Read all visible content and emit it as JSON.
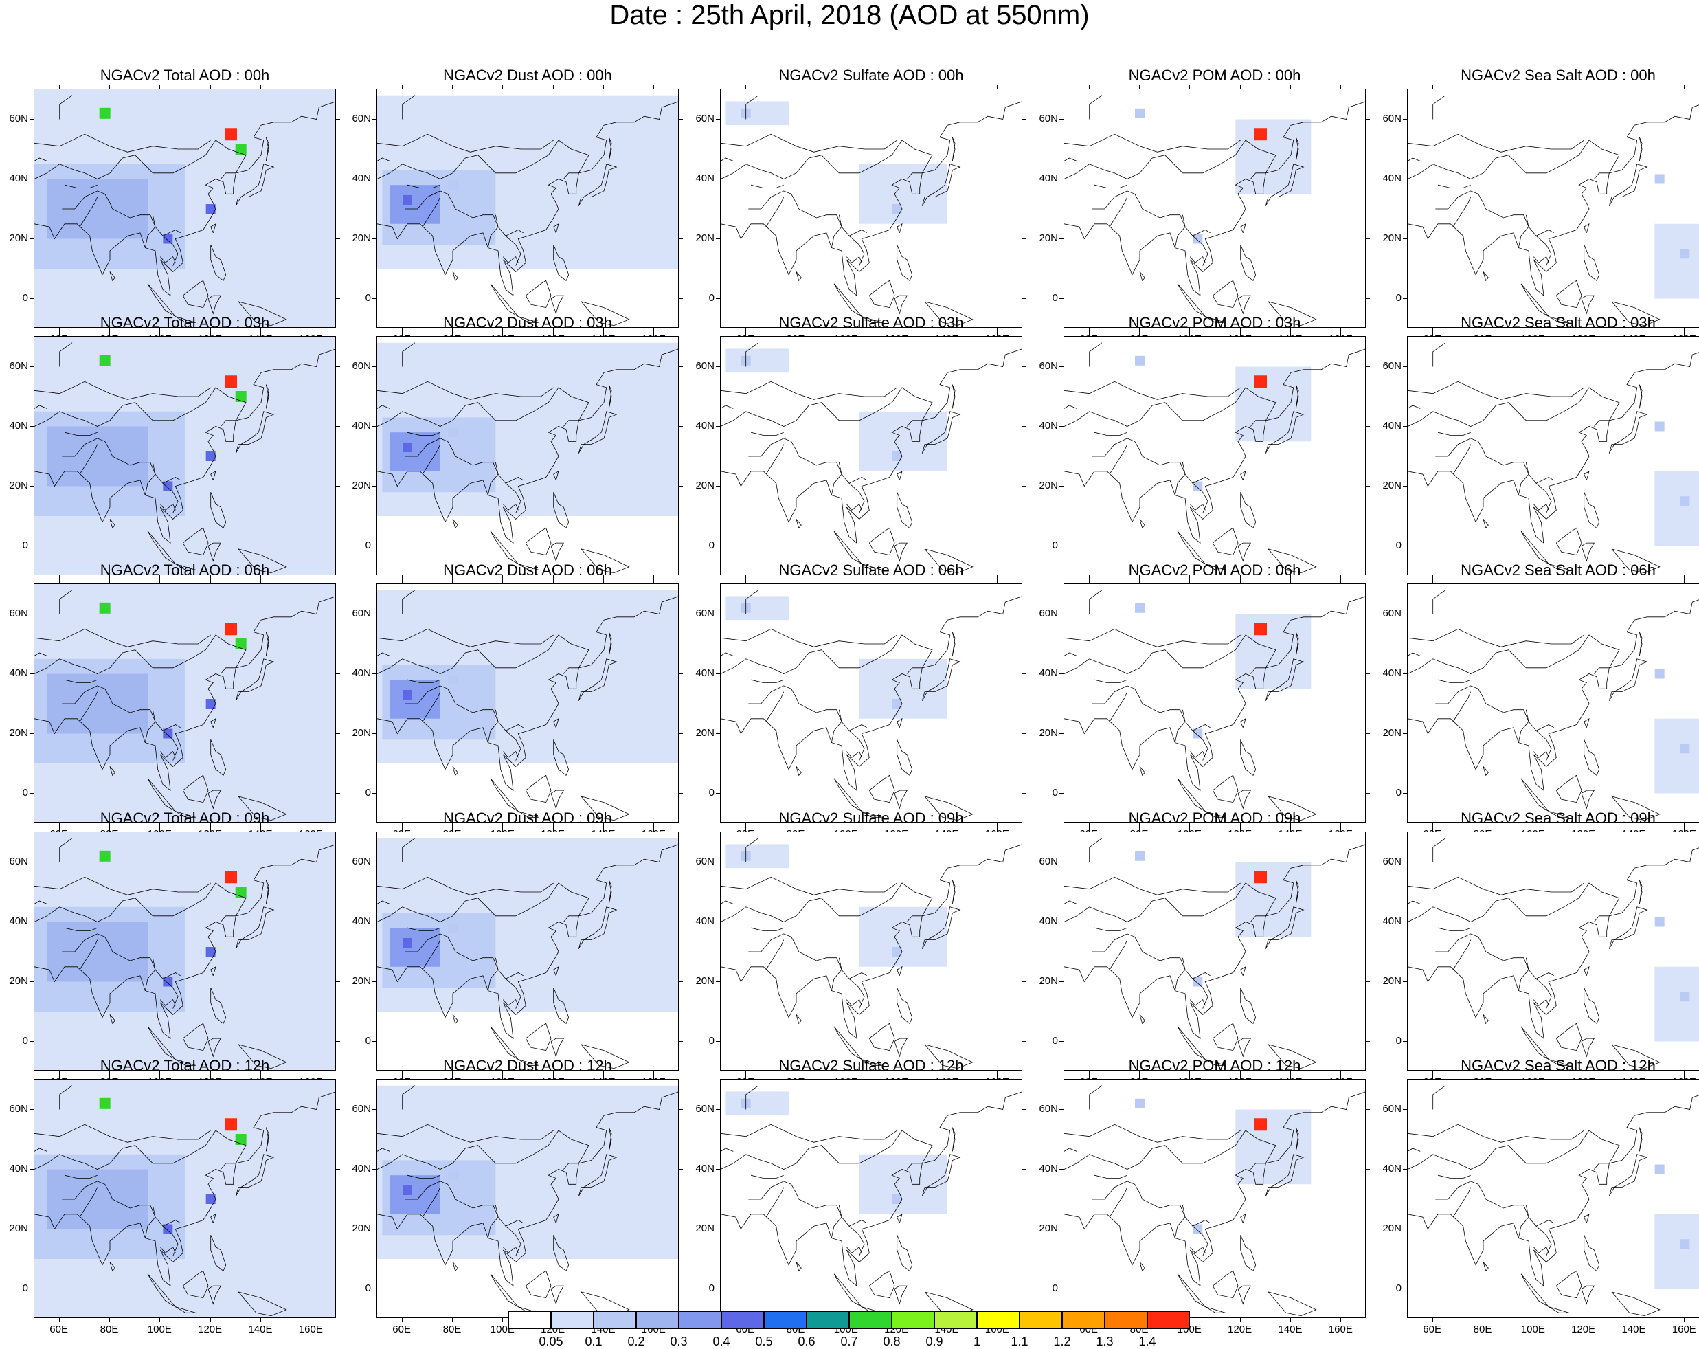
{
  "title": "Date : 25th April, 2018 (AOD at 550nm)",
  "map": {
    "lon_range": [
      50,
      170
    ],
    "lat_range": [
      -10,
      70
    ],
    "x_ticks": [
      "60E",
      "80E",
      "100E",
      "120E",
      "140E",
      "160E"
    ],
    "x_tick_values": [
      60,
      80,
      100,
      120,
      140,
      160
    ],
    "y_ticks": [
      "60N",
      "40N",
      "20N",
      "0"
    ],
    "y_tick_values": [
      60,
      40,
      20,
      0
    ]
  },
  "rows": [
    {
      "hour": "00h",
      "titles": [
        "NGACv2 Total AOD : 00h",
        "NGACv2 Dust AOD : 00h",
        "NGACv2 Sulfate AOD : 00h",
        "NGACv2 POM AOD : 00h",
        "NGACv2 Sea Salt AOD : 00h"
      ]
    },
    {
      "hour": "03h",
      "titles": [
        "NGACv2 Total AOD : 03h",
        "NGACv2 Dust AOD : 03h",
        "NGACv2 Sulfate AOD : 03h",
        "NGACv2 POM AOD : 03h",
        "NGACv2 Sea Salt AOD : 03h"
      ]
    },
    {
      "hour": "06h",
      "titles": [
        "NGACv2 Total AOD : 06h",
        "NGACv2 Dust AOD : 06h",
        "NGACv2 Sulfate AOD : 06h",
        "NGACv2 POM AOD : 06h",
        "NGACv2 Sea Salt AOD : 06h"
      ]
    },
    {
      "hour": "09h",
      "titles": [
        "NGACv2 Total AOD : 09h",
        "NGACv2 Dust AOD : 09h",
        "NGACv2 Sulfate AOD : 09h",
        "NGACv2 POM AOD : 09h",
        "NGACv2 Sea Salt  AOD : 09h"
      ]
    },
    {
      "hour": "12h",
      "titles": [
        "NGACv2 Total AOD  : 12h",
        "NGACv2 Dust AOD : 12h",
        "NGACv2 Sulfate AOD : 12h",
        "NGACv2 POM  AOD : 12h",
        "NGACv2 Sea Salt  AOD : 12h"
      ]
    }
  ],
  "species": [
    "Total",
    "Dust",
    "Sulfate",
    "POM",
    "Sea Salt"
  ],
  "colorbar": {
    "labels": [
      "0.05",
      "0.1",
      "0.2",
      "0.3",
      "0.4",
      "0.5",
      "0.6",
      "0.7",
      "0.8",
      "0.9",
      "1",
      "1.1",
      "1.2",
      "1.3",
      "1.4"
    ],
    "colors": [
      "#ffffff",
      "#d4e0fa",
      "#b9cbf5",
      "#9fb5f0",
      "#8198ee",
      "#5d68e6",
      "#1f6ff0",
      "#0f9a96",
      "#30d62e",
      "#7cf21c",
      "#b9f23a",
      "#ffff00",
      "#ffc400",
      "#ffa000",
      "#ff7a00",
      "#ff2a10"
    ]
  },
  "hotspots": {
    "Total": [
      {
        "lon": 78,
        "lat": 62,
        "level": "high"
      },
      {
        "lon": 128,
        "lat": 55,
        "level": "peak"
      },
      {
        "lon": 132,
        "lat": 50,
        "level": "high"
      },
      {
        "lon": 120,
        "lat": 30,
        "level": "mid"
      },
      {
        "lon": 103,
        "lat": 20,
        "level": "mid"
      }
    ],
    "Dust": [
      {
        "lon": 62,
        "lat": 33,
        "level": "mid"
      },
      {
        "lon": 80,
        "lat": 38,
        "level": "low"
      }
    ],
    "Sulfate": [
      {
        "lon": 120,
        "lat": 30,
        "level": "low"
      },
      {
        "lon": 60,
        "lat": 62,
        "level": "low"
      }
    ],
    "POM": [
      {
        "lon": 128,
        "lat": 55,
        "level": "peak"
      },
      {
        "lon": 80,
        "lat": 62,
        "level": "low"
      },
      {
        "lon": 103,
        "lat": 20,
        "level": "low"
      }
    ],
    "Sea Salt": [
      {
        "lon": 160,
        "lat": 15,
        "level": "low"
      },
      {
        "lon": 150,
        "lat": 40,
        "level": "low"
      }
    ]
  }
}
